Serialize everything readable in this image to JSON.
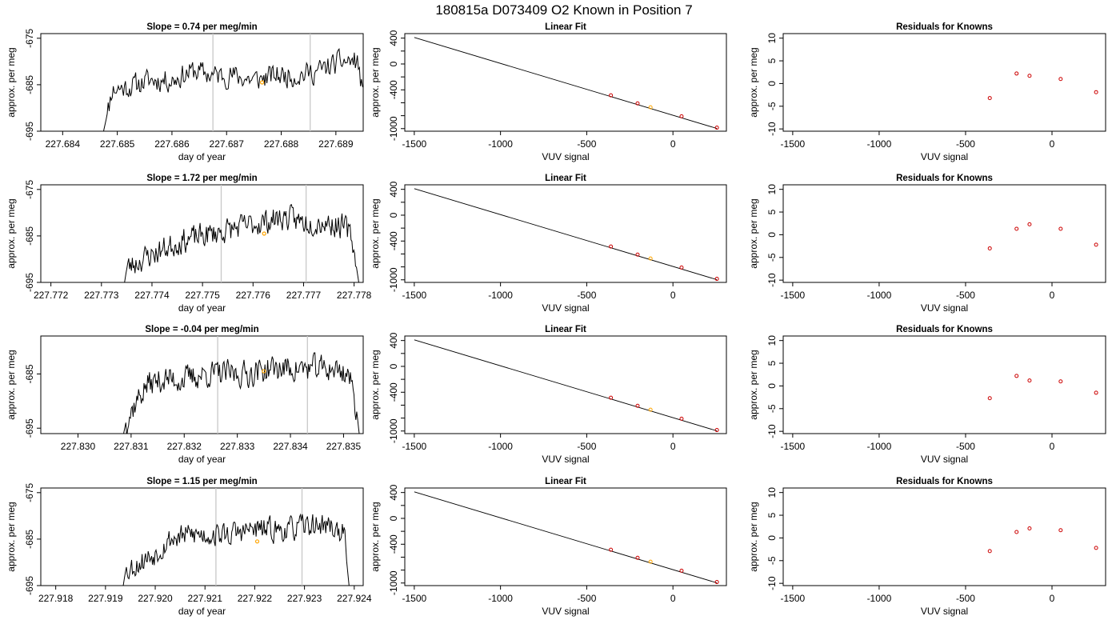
{
  "page": {
    "title": "180815a     D073409   O2 Known in Position  7"
  },
  "colors": {
    "trace": "#000000",
    "marker_highlight": "#ffa500",
    "residual_point": "#cc0000",
    "vline": "#c8c8c8",
    "fit_line": "#000000"
  },
  "rows": [
    {
      "trace_title": "Slope =  0.74  per meg/min",
      "trace_xticks": [
        "227.684",
        "227.685",
        "227.686",
        "227.687",
        "227.688",
        "227.689"
      ],
      "trace_yticks": [
        "-675",
        "-685",
        "-695"
      ],
      "fit_title": "Linear Fit",
      "resid_title": "Residuals for Knowns"
    },
    {
      "trace_title": "Slope =  1.72  per meg/min",
      "trace_xticks": [
        "227.772",
        "227.773",
        "227.774",
        "227.775",
        "227.776",
        "227.777",
        "227.778"
      ],
      "trace_yticks": [
        "-675",
        "-685",
        "-695"
      ],
      "fit_title": "Linear Fit",
      "resid_title": "Residuals for Knowns"
    },
    {
      "trace_title": "Slope =  -0.04  per meg/min",
      "trace_xticks": [
        "227.830",
        "227.831",
        "227.832",
        "227.833",
        "227.834",
        "227.835"
      ],
      "trace_yticks": [
        "-685",
        "-695"
      ],
      "fit_title": "Linear Fit",
      "resid_title": "Residuals for Knowns"
    },
    {
      "trace_title": "Slope =  1.15  per meg/min",
      "trace_xticks": [
        "227.918",
        "227.919",
        "227.920",
        "227.921",
        "227.922",
        "227.923",
        "227.924"
      ],
      "trace_yticks": [
        "-675",
        "-685",
        "-695"
      ],
      "fit_title": "Linear Fit",
      "resid_title": "Residuals for Knowns"
    }
  ],
  "labels": {
    "trace_x": "day of year",
    "trace_y": "approx. per meg",
    "fit_x": "VUV signal",
    "fit_y": "approx. per meg",
    "resid_x": "VUV signal",
    "resid_y": "approx. per meg"
  },
  "chart_data": [
    {
      "type": "line",
      "title": "Slope =  0.74  per meg/min",
      "xlabel": "day of year",
      "ylabel": "approx. per meg",
      "xlim": [
        227.6836,
        227.6895
      ],
      "ylim": [
        -695,
        -674
      ],
      "xticks": [
        227.684,
        227.685,
        227.686,
        227.687,
        227.688,
        227.689
      ],
      "yticks": [
        -675,
        -685,
        -695
      ],
      "vlines": [
        227.68675,
        227.68853
      ],
      "highlight": {
        "x": 227.68765,
        "y": -684.5
      },
      "trace_anchors": [
        [
          227.68474,
          -695.5
        ],
        [
          227.68485,
          -689.5
        ],
        [
          227.6849,
          -686
        ],
        [
          227.6852,
          -685.5
        ],
        [
          227.6856,
          -684
        ],
        [
          227.686,
          -684
        ],
        [
          227.6864,
          -682
        ],
        [
          227.68675,
          -683
        ],
        [
          227.6871,
          -683
        ],
        [
          227.6875,
          -684
        ],
        [
          227.6879,
          -683
        ],
        [
          227.6883,
          -683
        ],
        [
          227.6887,
          -682
        ],
        [
          227.6891,
          -680
        ],
        [
          227.6894,
          -680
        ],
        [
          227.68953,
          -690
        ],
        [
          227.68958,
          -695.5
        ]
      ],
      "trace_noise": 2.2,
      "seed": 11
    },
    {
      "type": "scatter",
      "title": "Linear Fit",
      "xlabel": "VUV signal",
      "ylabel": "approx. per meg",
      "xlim": [
        -1555,
        310
      ],
      "ylim": [
        -1040,
        470
      ],
      "xticks": [
        -1500,
        -1000,
        -500,
        0
      ],
      "yticks": [
        400,
        0,
        -400,
        -1000
      ],
      "line": {
        "x": [
          -1500,
          255
        ],
        "y": [
          410,
          -998
        ]
      },
      "points": {
        "x": [
          -360,
          -205,
          -130,
          50,
          255
        ],
        "y": [
          -485,
          -610,
          -670,
          -810,
          -985
        ]
      },
      "highlight_index": 2
    },
    {
      "type": "scatter",
      "title": "Residuals for Knowns",
      "xlabel": "VUV signal",
      "ylabel": "approx. per meg",
      "xlim": [
        -1555,
        310
      ],
      "ylim": [
        -10.5,
        11
      ],
      "xticks": [
        -1500,
        -1000,
        0
      ],
      "xtick_labels_extra": [
        -500
      ],
      "yticks": [
        10,
        5,
        0,
        -5,
        -10
      ],
      "points": {
        "x": [
          -360,
          -205,
          -130,
          50,
          255
        ],
        "y": [
          -3.2,
          2.2,
          1.7,
          1.0,
          -1.9
        ]
      }
    },
    {
      "type": "line",
      "title": "Slope =  1.72  per meg/min",
      "xlabel": "day of year",
      "ylabel": "approx. per meg",
      "xlim": [
        227.7718,
        227.77818
      ],
      "ylim": [
        -695,
        -674
      ],
      "xticks": [
        227.772,
        227.773,
        227.774,
        227.775,
        227.776,
        227.777,
        227.778
      ],
      "yticks": [
        -675,
        -685,
        -695
      ],
      "vlines": [
        227.77537,
        227.77705
      ],
      "highlight": {
        "x": 227.77622,
        "y": -684.5
      },
      "trace_anchors": [
        [
          227.77345,
          -695.5
        ],
        [
          227.7735,
          -692
        ],
        [
          227.7738,
          -690
        ],
        [
          227.7742,
          -688
        ],
        [
          227.7746,
          -686
        ],
        [
          227.775,
          -685
        ],
        [
          227.7754,
          -684
        ],
        [
          227.7758,
          -683
        ],
        [
          227.7762,
          -682
        ],
        [
          227.7766,
          -681
        ],
        [
          227.777,
          -682
        ],
        [
          227.7774,
          -682
        ],
        [
          227.7778,
          -683
        ],
        [
          227.77795,
          -685
        ],
        [
          227.77805,
          -692
        ],
        [
          227.7781,
          -695.5
        ]
      ],
      "trace_noise": 2.4,
      "seed": 23
    },
    {
      "type": "scatter",
      "title": "Linear Fit",
      "xlabel": "VUV signal",
      "ylabel": "approx. per meg",
      "xlim": [
        -1555,
        310
      ],
      "ylim": [
        -1040,
        470
      ],
      "xticks": [
        -1500,
        -1000,
        -500,
        0
      ],
      "yticks": [
        400,
        0,
        -400,
        -1000
      ],
      "line": {
        "x": [
          -1500,
          255
        ],
        "y": [
          410,
          -998
        ]
      },
      "points": {
        "x": [
          -360,
          -205,
          -130,
          50,
          255
        ],
        "y": [
          -485,
          -610,
          -670,
          -810,
          -985
        ]
      },
      "highlight_index": 2
    },
    {
      "type": "scatter",
      "title": "Residuals for Knowns",
      "xlabel": "VUV signal",
      "ylabel": "approx. per meg",
      "xlim": [
        -1555,
        310
      ],
      "ylim": [
        -10.5,
        11
      ],
      "xticks": [
        -1500,
        -1000,
        0
      ],
      "xtick_labels_extra": [
        -500
      ],
      "yticks": [
        10,
        5,
        0,
        -5,
        -10
      ],
      "points": {
        "x": [
          -360,
          -205,
          -130,
          50,
          255
        ],
        "y": [
          -3.0,
          1.3,
          2.3,
          1.3,
          -2.2
        ]
      }
    },
    {
      "type": "line",
      "title": "Slope =  -0.04  per meg/min",
      "xlabel": "day of year",
      "ylabel": "approx. per meg",
      "xlim": [
        227.8293,
        227.83537
      ],
      "ylim": [
        -696,
        -678
      ],
      "xticks": [
        227.83,
        227.831,
        227.832,
        227.833,
        227.834,
        227.835
      ],
      "yticks": [
        -685,
        -695
      ],
      "vlines": [
        227.83263,
        227.83432
      ],
      "highlight": {
        "x": 227.8335,
        "y": -684.5
      },
      "trace_anchors": [
        [
          227.83085,
          -696.5
        ],
        [
          227.8309,
          -694
        ],
        [
          227.8311,
          -690
        ],
        [
          227.8313,
          -687
        ],
        [
          227.8316,
          -686
        ],
        [
          227.832,
          -686
        ],
        [
          227.8324,
          -685
        ],
        [
          227.8328,
          -685
        ],
        [
          227.8332,
          -685
        ],
        [
          227.8336,
          -684
        ],
        [
          227.834,
          -684
        ],
        [
          227.8344,
          -684
        ],
        [
          227.8348,
          -684
        ],
        [
          227.8351,
          -685
        ],
        [
          227.83525,
          -692
        ],
        [
          227.8353,
          -696.5
        ]
      ],
      "trace_noise": 2.2,
      "seed": 37
    },
    {
      "type": "scatter",
      "title": "Linear Fit",
      "xlabel": "VUV signal",
      "ylabel": "approx. per meg",
      "xlim": [
        -1555,
        310
      ],
      "ylim": [
        -1040,
        470
      ],
      "xticks": [
        -1500,
        -1000,
        -500,
        0
      ],
      "yticks": [
        400,
        0,
        -400,
        -1000
      ],
      "line": {
        "x": [
          -1500,
          255
        ],
        "y": [
          410,
          -998
        ]
      },
      "points": {
        "x": [
          -360,
          -205,
          -130,
          50,
          255
        ],
        "y": [
          -485,
          -610,
          -670,
          -810,
          -985
        ]
      },
      "highlight_index": 2
    },
    {
      "type": "scatter",
      "title": "Residuals for Knowns",
      "xlabel": "VUV signal",
      "ylabel": "approx. per meg",
      "xlim": [
        -1555,
        310
      ],
      "ylim": [
        -10.5,
        11
      ],
      "xticks": [
        -1500,
        -1000,
        0
      ],
      "xtick_labels_extra": [
        -500
      ],
      "yticks": [
        10,
        5,
        0,
        -5,
        -10
      ],
      "points": {
        "x": [
          -360,
          -205,
          -130,
          50,
          255
        ],
        "y": [
          -2.7,
          2.2,
          1.2,
          1.0,
          -1.5
        ]
      }
    },
    {
      "type": "line",
      "title": "Slope =  1.15  per meg/min",
      "xlabel": "day of year",
      "ylabel": "approx. per meg",
      "xlim": [
        227.9177,
        227.92418
      ],
      "ylim": [
        -695,
        -674
      ],
      "xticks": [
        227.918,
        227.919,
        227.92,
        227.921,
        227.922,
        227.923,
        227.924
      ],
      "yticks": [
        -675,
        -685,
        -695
      ],
      "vlines": [
        227.92122,
        227.92295
      ],
      "highlight": {
        "x": 227.92205,
        "y": -685.5
      },
      "trace_anchors": [
        [
          227.91935,
          -695.5
        ],
        [
          227.9194,
          -692
        ],
        [
          227.9197,
          -690
        ],
        [
          227.92,
          -688
        ],
        [
          227.9203,
          -685
        ],
        [
          227.9207,
          -684
        ],
        [
          227.9211,
          -684
        ],
        [
          227.9215,
          -684
        ],
        [
          227.9219,
          -683
        ],
        [
          227.9223,
          -683
        ],
        [
          227.9227,
          -683
        ],
        [
          227.9231,
          -682
        ],
        [
          227.9235,
          -682
        ],
        [
          227.9238,
          -684
        ],
        [
          227.92385,
          -690
        ],
        [
          227.9239,
          -695.5
        ]
      ],
      "trace_noise": 2.3,
      "seed": 53
    },
    {
      "type": "scatter",
      "title": "Linear Fit",
      "xlabel": "VUV signal",
      "ylabel": "approx. per meg",
      "xlim": [
        -1555,
        310
      ],
      "ylim": [
        -1040,
        470
      ],
      "xticks": [
        -1500,
        -1000,
        -500,
        0
      ],
      "yticks": [
        400,
        0,
        -400,
        -1000
      ],
      "line": {
        "x": [
          -1500,
          255
        ],
        "y": [
          410,
          -998
        ]
      },
      "points": {
        "x": [
          -360,
          -205,
          -130,
          50,
          255
        ],
        "y": [
          -485,
          -610,
          -670,
          -810,
          -985
        ]
      },
      "highlight_index": 2
    },
    {
      "type": "scatter",
      "title": "Residuals for Knowns",
      "xlabel": "VUV signal",
      "ylabel": "approx. per meg",
      "xlim": [
        -1555,
        310
      ],
      "ylim": [
        -10.5,
        11
      ],
      "xticks": [
        -1500,
        -1000,
        0
      ],
      "xtick_labels_extra": [
        -500
      ],
      "yticks": [
        10,
        5,
        0,
        -5,
        -10
      ],
      "points": {
        "x": [
          -360,
          -205,
          -130,
          50,
          255
        ],
        "y": [
          -2.9,
          1.3,
          2.1,
          1.7,
          -2.2
        ]
      }
    }
  ]
}
